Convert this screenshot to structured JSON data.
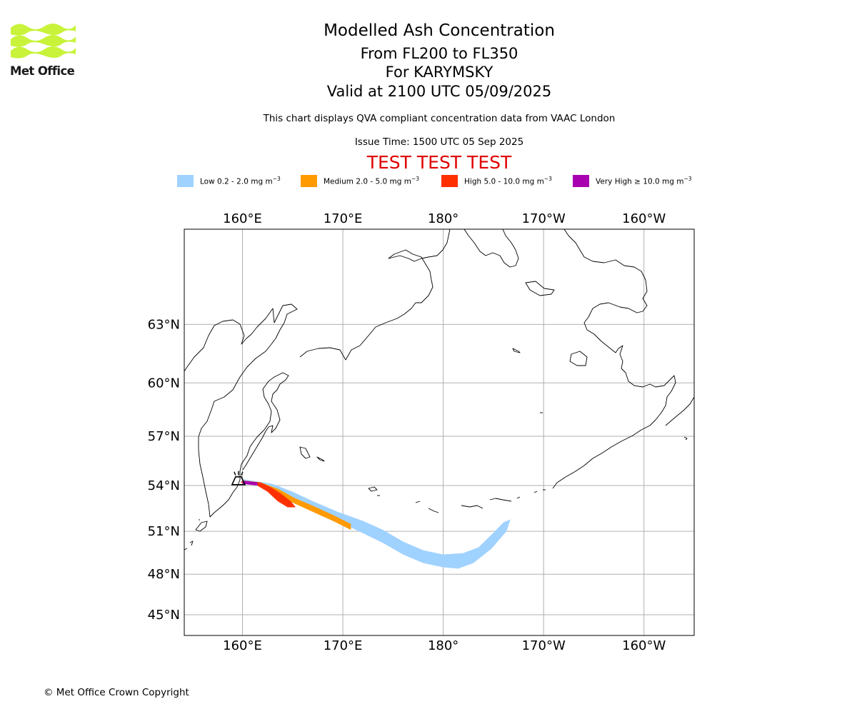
{
  "logo": {
    "name": "Met Office"
  },
  "header": {
    "title": "Modelled Ash Concentration",
    "levels": "From FL200 to FL350",
    "volcano": "For KARYMSKY",
    "valid": "Valid at 2100 UTC 05/09/2025",
    "description": "This chart displays QVA compliant concentration data from VAAC London",
    "issue_time": "Issue Time: 1500 UTC 05 Sep 2025",
    "test_banner": "TEST TEST TEST"
  },
  "legend": [
    {
      "label": "Low 0.2 - 2.0 mg m",
      "exp": "−3",
      "color": "#a0d2ff"
    },
    {
      "label": "Medium 2.0 - 5.0 mg m",
      "exp": "−3",
      "color": "#ff9a00"
    },
    {
      "label": "High 5.0 - 10.0 mg m",
      "exp": "−3",
      "color": "#ff3000"
    },
    {
      "label": "Very High  ≥  10.0 mg m",
      "exp": "−3",
      "color": "#a800b0"
    }
  ],
  "map": {
    "projection": "equirectangular",
    "extent": {
      "lon": [
        154.2,
        205.0
      ],
      "lat": [
        43.4,
        67.3
      ]
    },
    "grid": true,
    "lon_ticks": [
      {
        "value": 160,
        "label": "160°E"
      },
      {
        "value": 170,
        "label": "170°E"
      },
      {
        "value": 180,
        "label": "180°"
      },
      {
        "value": 190,
        "label": "170°W"
      },
      {
        "value": 200,
        "label": "160°W"
      }
    ],
    "lat_ticks": [
      {
        "value": 63,
        "label": "63°N"
      },
      {
        "value": 60,
        "label": "60°N"
      },
      {
        "value": 57,
        "label": "57°N"
      },
      {
        "value": 54,
        "label": "54°N"
      },
      {
        "value": 51,
        "label": "51°N"
      },
      {
        "value": 48,
        "label": "48°N"
      },
      {
        "value": 45,
        "label": "45°N"
      }
    ],
    "volcano_marker": {
      "name": "KARYMSKY",
      "lon": 159.6,
      "lat": 54.1,
      "icon": "volcano-icon"
    },
    "ash_areas": {
      "low": [
        [
          159.8,
          54.2
        ],
        [
          161,
          54.1
        ],
        [
          162.5,
          53.7
        ],
        [
          165,
          52.9
        ],
        [
          168,
          52.1
        ],
        [
          171,
          51.2
        ],
        [
          174,
          50.2
        ],
        [
          176,
          49.4
        ],
        [
          178,
          48.8
        ],
        [
          180,
          48.5
        ],
        [
          181.5,
          48.4
        ],
        [
          183,
          48.8
        ],
        [
          184.8,
          49.8
        ],
        [
          186.3,
          51.0
        ],
        [
          186.7,
          51.8
        ],
        [
          186,
          51.6
        ],
        [
          185,
          50.9
        ],
        [
          183.5,
          49.9
        ],
        [
          182,
          49.5
        ],
        [
          180,
          49.4
        ],
        [
          178,
          49.7
        ],
        [
          176,
          50.3
        ],
        [
          174,
          51.1
        ],
        [
          172,
          51.7
        ],
        [
          169.5,
          52.3
        ],
        [
          167,
          53.0
        ],
        [
          165,
          53.6
        ],
        [
          163,
          54.1
        ],
        [
          161,
          54.3
        ],
        [
          160,
          54.4
        ]
      ],
      "medium": [
        [
          159.8,
          54.2
        ],
        [
          161.5,
          54.1
        ],
        [
          163,
          53.5
        ],
        [
          165,
          52.9
        ],
        [
          167,
          52.3
        ],
        [
          169,
          51.7
        ],
        [
          170.8,
          51.1
        ],
        [
          170.8,
          51.5
        ],
        [
          169,
          52.1
        ],
        [
          167,
          52.7
        ],
        [
          165.2,
          53.2
        ],
        [
          163.5,
          53.8
        ],
        [
          161.8,
          54.2
        ],
        [
          160,
          54.3
        ]
      ],
      "high": [
        [
          159.8,
          54.2
        ],
        [
          161.2,
          54.1
        ],
        [
          162.5,
          53.6
        ],
        [
          163.5,
          53.0
        ],
        [
          164.5,
          52.6
        ],
        [
          165.3,
          52.6
        ],
        [
          164.8,
          53.0
        ],
        [
          163.8,
          53.5
        ],
        [
          162.8,
          53.9
        ],
        [
          161.8,
          54.2
        ],
        [
          160.2,
          54.3
        ]
      ],
      "very_high": [
        [
          160.0,
          54.1
        ],
        [
          161.5,
          54.0
        ],
        [
          161.5,
          54.2
        ],
        [
          160.0,
          54.3
        ]
      ]
    }
  },
  "footer": {
    "copyright": "© Met Office Crown Copyright"
  }
}
